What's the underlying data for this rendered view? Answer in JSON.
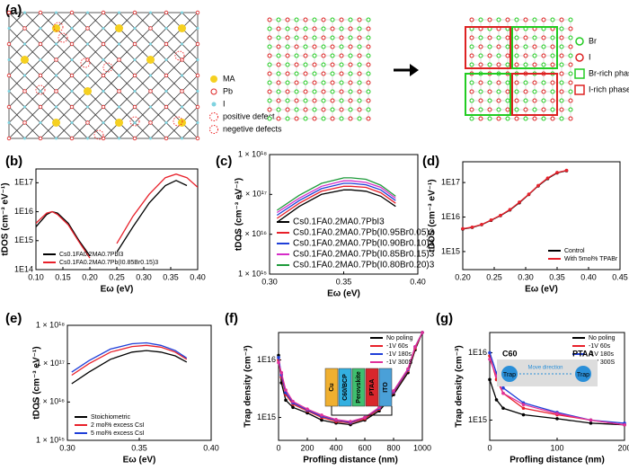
{
  "panel_a": {
    "panel": "(a)",
    "legend_left": [
      "MA",
      "Pb",
      "I",
      "positive defect",
      "negetive defects"
    ],
    "legend_right": [
      "Br",
      "I",
      "Br-rich phase",
      "I-rich phase"
    ]
  },
  "chart_data": [
    {
      "type": "line",
      "panel": "(b)",
      "x_label": "Eω (eV)",
      "y_label": "tDOS (cm⁻³ eV⁻¹)",
      "log_y": true,
      "markers": false,
      "legend": "lower left",
      "xlim": [
        0.1,
        0.4
      ],
      "xticks": [
        {
          "value": 0.1,
          "label": "0.10"
        },
        {
          "value": 0.15,
          "label": "0.15"
        },
        {
          "value": 0.2,
          "label": "0.20"
        },
        {
          "value": 0.25,
          "label": "0.25"
        },
        {
          "value": 0.3,
          "label": "0.30"
        },
        {
          "value": 0.35,
          "label": "0.35"
        },
        {
          "value": 0.4,
          "label": "0.40"
        }
      ],
      "ylim": [
        100000000000000.0,
        3e+17
      ],
      "yticks": [
        {
          "value": 100000000000000.0,
          "label": "1E14"
        },
        {
          "value": 1000000000000000.0,
          "label": "1E15"
        },
        {
          "value": 1e+16,
          "label": "1E16"
        },
        {
          "value": 1e+17,
          "label": "1E17"
        }
      ],
      "x": [
        0.1,
        0.12,
        0.13,
        0.14,
        0.16,
        0.18,
        0.2,
        0.22,
        0.25,
        0.28,
        0.31,
        0.34,
        0.36,
        0.38,
        0.4
      ],
      "series": [
        {
          "name": "Cs0.1FA0.2MA0.7PbI3",
          "color": "#000000",
          "values": [
            3000000000000000.0,
            8000000000000000.0,
            1e+16,
            9000000000000000.0,
            4000000000000000.0,
            1000000000000000.0,
            300000000000000.0,
            null,
            400000000000000.0,
            3000000000000000.0,
            2e+16,
            8e+16,
            1.2e+17,
            8e+16,
            null
          ]
        },
        {
          "name": "Cs0.1FA0.2MA0.7Pb(I0.85Br0.15)3",
          "color": "#e8202a",
          "values": [
            4000000000000000.0,
            9000000000000000.0,
            1e+16,
            8000000000000000.0,
            3500000000000000.0,
            900000000000000.0,
            250000000000000.0,
            null,
            800000000000000.0,
            7000000000000000.0,
            4e+16,
            1.5e+17,
            2e+17,
            1.5e+17,
            7e+16
          ]
        }
      ]
    },
    {
      "type": "line",
      "panel": "(c)",
      "x_label": "Eω (eV)",
      "y_label": "tDOS (cm⁻³ eV⁻¹)",
      "log_y": true,
      "markers": false,
      "legend": "lower center",
      "xlim": [
        0.3,
        0.4
      ],
      "xticks": [
        {
          "value": 0.3,
          "label": "0.30"
        },
        {
          "value": 0.35,
          "label": "0.35"
        },
        {
          "value": 0.4,
          "label": "0.40"
        }
      ],
      "ylim": [
        1000000000000000.0,
        1e+18
      ],
      "yticks": [
        {
          "value": 1000000000000000.0,
          "label": "1 × 10¹⁵"
        },
        {
          "value": 1e+16,
          "label": "1 × 10¹⁶"
        },
        {
          "value": 1e+17,
          "label": "1 × 10¹⁷"
        },
        {
          "value": 1e+18,
          "label": "1 × 10¹⁸"
        }
      ],
      "x": [
        0.305,
        0.32,
        0.335,
        0.35,
        0.355,
        0.365,
        0.375,
        0.385
      ],
      "series": [
        {
          "name": "Cs0.1FA0.2MA0.7PbI3",
          "color": "#000000",
          "values": [
            2e+16,
            5e+16,
            1e+17,
            1.3e+17,
            1.3e+17,
            1.2e+17,
            9e+16,
            5e+16
          ]
        },
        {
          "name": "Cs0.1FA0.2MA0.7Pb(I0.95Br0.05)3",
          "color": "#e8202a",
          "values": [
            2.5e+16,
            6e+16,
            1.2e+17,
            1.6e+17,
            1.6e+17,
            1.5e+17,
            1.1e+17,
            6e+16
          ]
        },
        {
          "name": "Cs0.1FA0.2MA0.7Pb(I0.90Br0.10)3",
          "color": "#1f3fd8",
          "values": [
            3e+16,
            7e+16,
            1.4e+17,
            1.9e+17,
            1.9e+17,
            1.75e+17,
            1.3e+17,
            7e+16
          ]
        },
        {
          "name": "Cs0.1FA0.2MA0.7Pb(I0.85Br0.15)3",
          "color": "#d62cc8",
          "values": [
            3.5e+16,
            8e+16,
            1.6e+17,
            2.2e+17,
            2.2e+17,
            2e+17,
            1.5e+17,
            8e+16
          ]
        },
        {
          "name": "Cs0.1FA0.2MA0.7Pb(I0.80Br0.20)3",
          "color": "#1e9a3a",
          "values": [
            4e+16,
            9.5e+16,
            1.9e+17,
            2.6e+17,
            2.6e+17,
            2.4e+17,
            1.7e+17,
            9e+16
          ]
        }
      ]
    },
    {
      "type": "line",
      "panel": "(d)",
      "x_label": "Eω (eV)",
      "y_label": "tDOS (cm⁻³ eV⁻¹)",
      "log_y": true,
      "markers": true,
      "legend": "lower right",
      "xlim": [
        0.2,
        0.45
      ],
      "xticks": [
        {
          "value": 0.2,
          "label": "0.20"
        },
        {
          "value": 0.25,
          "label": "0.25"
        },
        {
          "value": 0.3,
          "label": "0.30"
        },
        {
          "value": 0.35,
          "label": "0.35"
        },
        {
          "value": 0.4,
          "label": "0.40"
        },
        {
          "value": 0.45,
          "label": "0.45"
        }
      ],
      "ylim": [
        300000000000000.0,
        4e+17
      ],
      "yticks": [
        {
          "value": 1000000000000000.0,
          "label": "1E15"
        },
        {
          "value": 1e+16,
          "label": "1E16"
        },
        {
          "value": 1e+17,
          "label": "1E17"
        }
      ],
      "x": [
        0.2,
        0.215,
        0.23,
        0.245,
        0.26,
        0.275,
        0.29,
        0.305,
        0.32,
        0.335,
        0.35,
        0.365
      ],
      "series": [
        {
          "name": "Control",
          "color": "#000000",
          "values": [
            4500000000000000.0,
            5000000000000000.0,
            6000000000000000.0,
            8000000000000000.0,
            1.1e+16,
            1.6e+16,
            2.6e+16,
            4.5e+16,
            8e+16,
            1.3e+17,
            1.9e+17,
            2.2e+17
          ]
        },
        {
          "name": "With 5mol% TPABr",
          "color": "#e8202a",
          "values": [
            4600000000000000.0,
            5100000000000000.0,
            6100000000000000.0,
            8200000000000000.0,
            1.12e+16,
            1.65e+16,
            2.7e+16,
            4.6e+16,
            8.2e+16,
            1.35e+17,
            1.95e+17,
            2.25e+17
          ]
        }
      ]
    },
    {
      "type": "line",
      "panel": "(e)",
      "x_label": "Eω (eV)",
      "y_label": "tDOS (cm⁻³ eV⁻¹)",
      "log_y": true,
      "markers": false,
      "legend": "lower left",
      "xlim": [
        0.3,
        0.4
      ],
      "xticks": [
        {
          "value": 0.3,
          "label": "0.30"
        },
        {
          "value": 0.35,
          "label": "0.35"
        },
        {
          "value": 0.4,
          "label": "0.40"
        }
      ],
      "ylim": [
        1000000000000000.0,
        1e+18
      ],
      "yticks": [
        {
          "value": 1000000000000000.0,
          "label": "1 × 10¹⁵"
        },
        {
          "value": 1e+16,
          "label": "1 × 10¹⁶"
        },
        {
          "value": 1e+17,
          "label": "1 × 10¹⁷"
        },
        {
          "value": 1e+18,
          "label": "1 × 10¹⁸"
        }
      ],
      "x": [
        0.303,
        0.315,
        0.33,
        0.345,
        0.355,
        0.365,
        0.375,
        0.383
      ],
      "series": [
        {
          "name": "Stoichiometric",
          "color": "#000000",
          "values": [
            3e+16,
            6e+16,
            1.3e+17,
            2e+17,
            2.2e+17,
            2e+17,
            1.6e+17,
            1.1e+17
          ]
        },
        {
          "name": "2 mol% excess CsI",
          "color": "#e8202a",
          "values": [
            5e+16,
            1e+17,
            2e+17,
            2.8e+17,
            3e+17,
            2.7e+17,
            2e+17,
            1.3e+17
          ]
        },
        {
          "name": "5 mol% excess CsI",
          "color": "#1f3fd8",
          "values": [
            6e+16,
            1.2e+17,
            2.4e+17,
            3.3e+17,
            3.5e+17,
            3e+17,
            2.2e+17,
            1.4e+17
          ]
        }
      ]
    },
    {
      "type": "line",
      "panel": "(f)",
      "x_label": "Profling distance (nm)",
      "y_label": "Trap density (cm⁻³)",
      "log_y": true,
      "markers": true,
      "legend": "upper right",
      "inset_labels": [
        "Cu",
        "C60/BCP",
        "Perovskite",
        "PTAA",
        "ITO"
      ],
      "xlim": [
        0,
        1000
      ],
      "xticks": [
        0,
        200,
        400,
        600,
        800,
        1000
      ],
      "ylim": [
        400000000000000.0,
        3e+16
      ],
      "yticks": [
        {
          "value": 1000000000000000.0,
          "label": "1E15"
        },
        {
          "value": 1e+16,
          "label": "1E16"
        }
      ],
      "x": [
        0,
        20,
        50,
        100,
        200,
        300,
        400,
        500,
        600,
        700,
        800,
        900,
        950,
        1000
      ],
      "series": [
        {
          "name": "No poling",
          "color": "#000000",
          "values": [
            1.2e+16,
            4000000000000000.0,
            2000000000000000.0,
            1500000000000000.0,
            1200000000000000.0,
            900000000000000.0,
            800000000000000.0,
            750000000000000.0,
            900000000000000.0,
            1300000000000000.0,
            2500000000000000.0,
            6000000000000000.0,
            1.5e+16,
            3e+16
          ]
        },
        {
          "name": "-1V 60s",
          "color": "#e8202a",
          "values": [
            1e+16,
            5000000000000000.0,
            2500000000000000.0,
            1700000000000000.0,
            1300000000000000.0,
            1000000000000000.0,
            850000000000000.0,
            800000000000000.0,
            950000000000000.0,
            1400000000000000.0,
            2700000000000000.0,
            6500000000000000.0,
            1.6e+16,
            3e+16
          ]
        },
        {
          "name": "-1V 180s",
          "color": "#1f3fd8",
          "values": [
            1.1e+16,
            5500000000000000.0,
            2700000000000000.0,
            1800000000000000.0,
            1350000000000000.0,
            1050000000000000.0,
            900000000000000.0,
            820000000000000.0,
            1000000000000000.0,
            1450000000000000.0,
            2800000000000000.0,
            6800000000000000.0,
            1.7e+16,
            3e+16
          ]
        },
        {
          "name": "-1V 300S",
          "color": "#e0309a",
          "values": [
            9000000000000000.0,
            6000000000000000.0,
            3000000000000000.0,
            1900000000000000.0,
            1400000000000000.0,
            1100000000000000.0,
            920000000000000.0,
            850000000000000.0,
            1000000000000000.0,
            1500000000000000.0,
            2900000000000000.0,
            7000000000000000.0,
            1.7e+16,
            3e+16
          ]
        }
      ]
    },
    {
      "type": "line",
      "panel": "(g)",
      "x_label": "Profling distance (nm)",
      "y_label": "Trap density (cm⁻³)",
      "log_y": true,
      "markers": true,
      "legend": "upper right",
      "inset_labels": [
        "C60",
        "Trap",
        "Move direction",
        "Trap",
        "PTAA"
      ],
      "xlim": [
        0,
        200
      ],
      "xticks": [
        0,
        100,
        200
      ],
      "ylim": [
        500000000000000.0,
        2e+16
      ],
      "yticks": [
        {
          "value": 1000000000000000.0,
          "label": "1E15"
        },
        {
          "value": 1e+16,
          "label": "1E16"
        }
      ],
      "x": [
        0,
        10,
        20,
        50,
        100,
        150,
        200
      ],
      "series": [
        {
          "name": "No poling",
          "color": "#000000",
          "values": [
            4000000000000000.0,
            2000000000000000.0,
            1500000000000000.0,
            1200000000000000.0,
            1050000000000000.0,
            900000000000000.0,
            850000000000000.0
          ]
        },
        {
          "name": "-1V 60s",
          "color": "#e8202a",
          "values": [
            9000000000000000.0,
            4000000000000000.0,
            2500000000000000.0,
            1500000000000000.0,
            1200000000000000.0,
            1000000000000000.0,
            850000000000000.0
          ]
        },
        {
          "name": "-1V 180s",
          "color": "#1f3fd8",
          "values": [
            1e+16,
            5000000000000000.0,
            3000000000000000.0,
            1800000000000000.0,
            1300000000000000.0,
            1000000000000000.0,
            900000000000000.0
          ]
        },
        {
          "name": "-1V 300S",
          "color": "#e0309a",
          "values": [
            8000000000000000.0,
            4500000000000000.0,
            2500000000000000.0,
            1700000000000000.0,
            1250000000000000.0,
            1000000000000000.0,
            850000000000000.0
          ]
        }
      ]
    }
  ]
}
